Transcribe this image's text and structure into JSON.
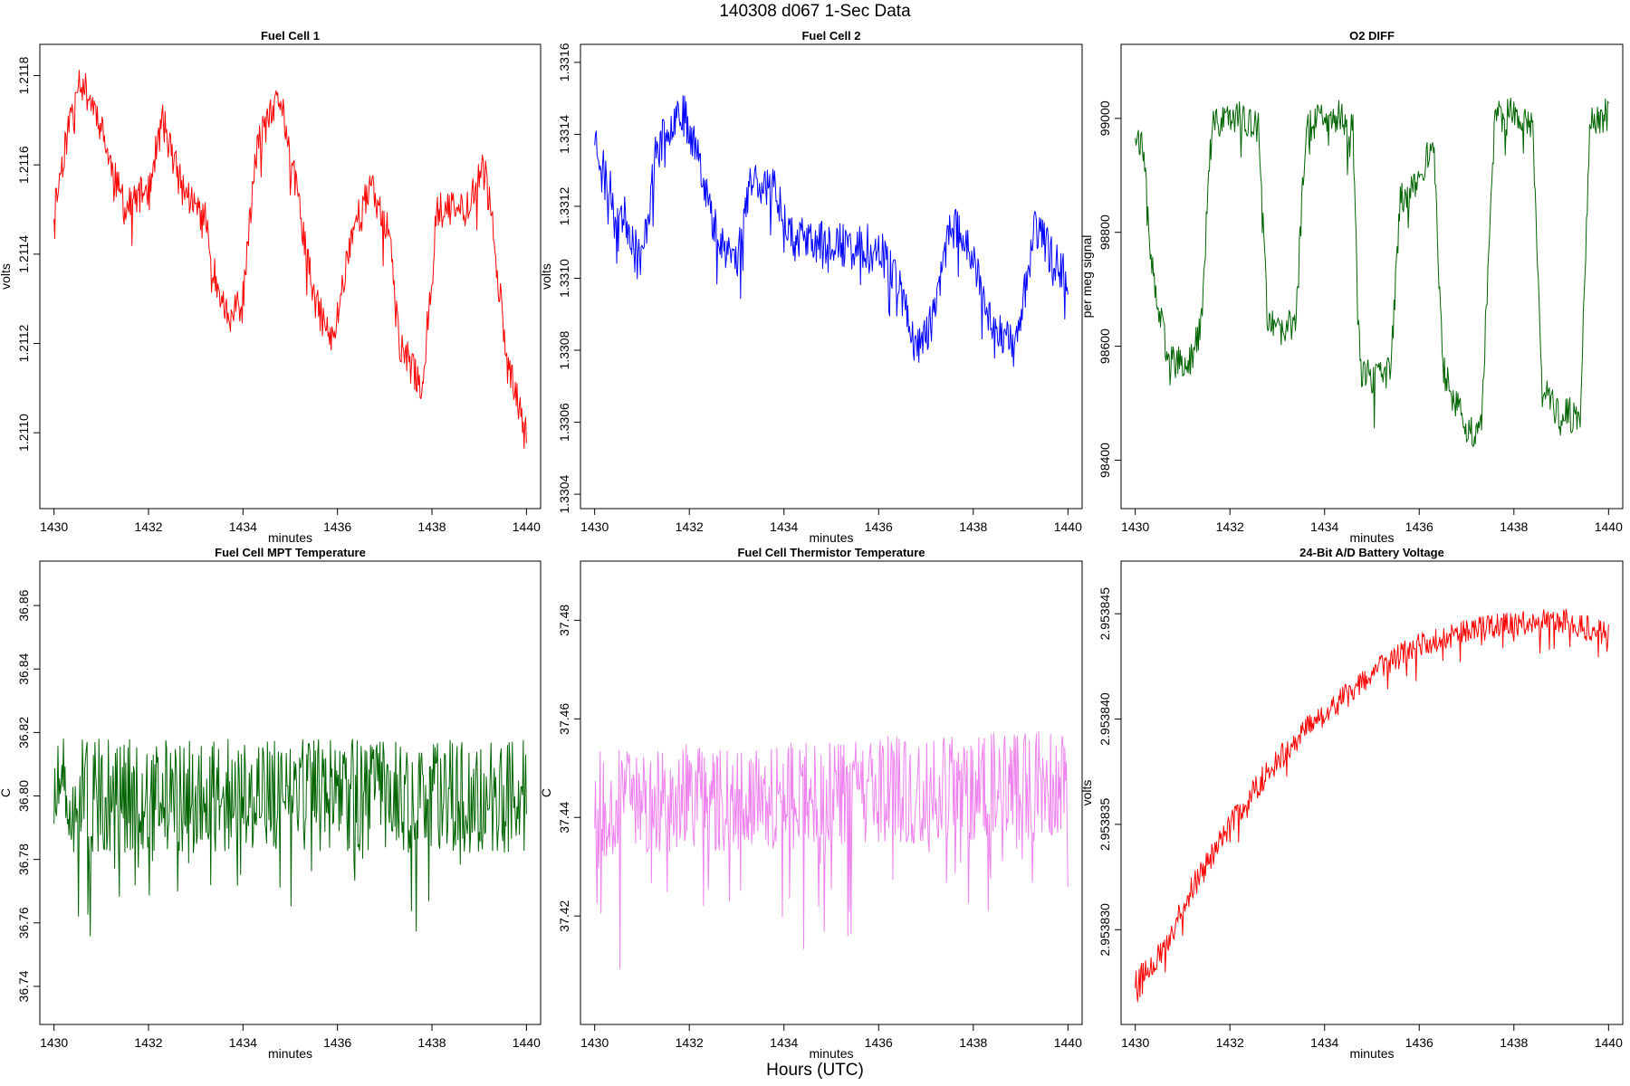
{
  "page": {
    "title": "140308   d067   1-Sec Data",
    "bottom_label": "Hours (UTC)"
  },
  "chart_data": [
    {
      "type": "line",
      "title": "Fuel Cell 1",
      "xlabel": "minutes",
      "ylabel": "volts",
      "color": "#ff0000",
      "xlim": [
        1429.7,
        1440.3
      ],
      "ylim": [
        1.21083,
        1.21187
      ],
      "xticks": [
        1430,
        1432,
        1434,
        1436,
        1438,
        1440
      ],
      "yticks": [
        1.211,
        1.2112,
        1.2114,
        1.2116,
        1.2118
      ],
      "ytick_labels": [
        "1.2110",
        "1.2112",
        "1.2114",
        "1.2116",
        "1.2118"
      ],
      "noise": 4e-05,
      "seed": 11,
      "trend": [
        [
          1430.0,
          1.2115
        ],
        [
          1430.25,
          1.21165
        ],
        [
          1430.5,
          1.2118
        ],
        [
          1430.9,
          1.21172
        ],
        [
          1431.2,
          1.2116
        ],
        [
          1431.5,
          1.2115
        ],
        [
          1432.0,
          1.21155
        ],
        [
          1432.3,
          1.2117
        ],
        [
          1432.7,
          1.21155
        ],
        [
          1433.2,
          1.21148
        ],
        [
          1433.4,
          1.21135
        ],
        [
          1433.7,
          1.21125
        ],
        [
          1434.0,
          1.2113
        ],
        [
          1434.3,
          1.21165
        ],
        [
          1434.8,
          1.21175
        ],
        [
          1435.2,
          1.2115
        ],
        [
          1435.5,
          1.2113
        ],
        [
          1435.9,
          1.2112
        ],
        [
          1436.3,
          1.21145
        ],
        [
          1436.7,
          1.21155
        ],
        [
          1437.1,
          1.21145
        ],
        [
          1437.3,
          1.2112
        ],
        [
          1437.8,
          1.2111
        ],
        [
          1438.1,
          1.2115
        ],
        [
          1438.7,
          1.2115
        ],
        [
          1439.1,
          1.2116
        ],
        [
          1439.3,
          1.21145
        ],
        [
          1439.6,
          1.21115
        ],
        [
          1440.0,
          1.211
        ]
      ]
    },
    {
      "type": "line",
      "title": "Fuel Cell 2",
      "xlabel": "minutes",
      "ylabel": "volts",
      "color": "#0000ff",
      "xlim": [
        1429.7,
        1440.3
      ],
      "ylim": [
        1.33036,
        1.33165
      ],
      "xticks": [
        1430,
        1432,
        1434,
        1436,
        1438,
        1440
      ],
      "yticks": [
        1.3304,
        1.3306,
        1.3308,
        1.331,
        1.3312,
        1.3314,
        1.3316
      ],
      "ytick_labels": [
        "1.3304",
        "1.3306",
        "1.3308",
        "1.3310",
        "1.3312",
        "1.3314",
        "1.3316"
      ],
      "noise": 6e-05,
      "seed": 23,
      "trend": [
        [
          1430.0,
          1.3314
        ],
        [
          1430.3,
          1.33125
        ],
        [
          1430.7,
          1.33115
        ],
        [
          1431.0,
          1.33105
        ],
        [
          1431.3,
          1.33135
        ],
        [
          1431.8,
          1.33148
        ],
        [
          1432.2,
          1.33135
        ],
        [
          1432.5,
          1.33115
        ],
        [
          1433.0,
          1.33105
        ],
        [
          1433.3,
          1.33128
        ],
        [
          1433.8,
          1.33125
        ],
        [
          1434.2,
          1.33112
        ],
        [
          1434.6,
          1.3311
        ],
        [
          1435.0,
          1.3311
        ],
        [
          1435.5,
          1.33108
        ],
        [
          1436.0,
          1.3311
        ],
        [
          1436.4,
          1.331
        ],
        [
          1436.8,
          1.3308
        ],
        [
          1437.2,
          1.3309
        ],
        [
          1437.5,
          1.33115
        ],
        [
          1437.9,
          1.3311
        ],
        [
          1438.3,
          1.3309
        ],
        [
          1438.9,
          1.3308
        ],
        [
          1439.3,
          1.33115
        ],
        [
          1439.7,
          1.33105
        ],
        [
          1440.0,
          1.331
        ]
      ]
    },
    {
      "type": "line",
      "title": "O2 DIFF",
      "xlabel": "minutes",
      "ylabel": "per meg signal",
      "color": "#006400",
      "xlim": [
        1429.7,
        1440.3
      ],
      "ylim": [
        98315,
        99130
      ],
      "xticks": [
        1430,
        1432,
        1434,
        1436,
        1438,
        1440
      ],
      "yticks": [
        98400,
        98600,
        98800,
        99000
      ],
      "ytick_labels": [
        "98400",
        "98600",
        "98800",
        "99000"
      ],
      "noise": 30,
      "seed": 37,
      "trend": [
        [
          1430.0,
          98980
        ],
        [
          1430.15,
          98950
        ],
        [
          1430.4,
          98700
        ],
        [
          1430.7,
          98580
        ],
        [
          1431.1,
          98560
        ],
        [
          1431.4,
          98640
        ],
        [
          1431.6,
          98980
        ],
        [
          1432.0,
          99010
        ],
        [
          1432.4,
          98990
        ],
        [
          1432.6,
          98980
        ],
        [
          1432.8,
          98640
        ],
        [
          1433.1,
          98620
        ],
        [
          1433.4,
          98650
        ],
        [
          1433.6,
          98980
        ],
        [
          1434.0,
          99010
        ],
        [
          1434.4,
          99000
        ],
        [
          1434.6,
          98980
        ],
        [
          1434.75,
          98560
        ],
        [
          1435.0,
          98540
        ],
        [
          1435.4,
          98560
        ],
        [
          1435.6,
          98860
        ],
        [
          1435.9,
          98880
        ],
        [
          1436.3,
          98960
        ],
        [
          1436.5,
          98560
        ],
        [
          1437.0,
          98450
        ],
        [
          1437.3,
          98450
        ],
        [
          1437.6,
          99000
        ],
        [
          1438.0,
          99010
        ],
        [
          1438.4,
          98990
        ],
        [
          1438.6,
          98520
        ],
        [
          1439.0,
          98480
        ],
        [
          1439.4,
          98480
        ],
        [
          1439.6,
          98990
        ],
        [
          1440.0,
          99010
        ]
      ]
    },
    {
      "type": "line",
      "title": "Fuel Cell MPT Temperature",
      "xlabel": "minutes",
      "ylabel": "C",
      "color": "#006400",
      "xlim": [
        1429.7,
        1440.3
      ],
      "ylim": [
        36.728,
        36.874
      ],
      "xticks": [
        1430,
        1432,
        1434,
        1436,
        1438,
        1440
      ],
      "yticks": [
        36.74,
        36.76,
        36.78,
        36.8,
        36.82,
        36.84,
        36.86
      ],
      "ytick_labels": [
        "36.74",
        "36.76",
        "36.78",
        "36.80",
        "36.82",
        "36.84",
        "36.86"
      ],
      "noise": 0.018,
      "seed": 51,
      "trend": [
        [
          1430.0,
          36.8
        ],
        [
          1440.0,
          36.8
        ]
      ]
    },
    {
      "type": "line",
      "title": "Fuel Cell Thermistor Temperature",
      "xlabel": "minutes",
      "ylabel": "C",
      "color": "#ee82ee",
      "xlim": [
        1429.7,
        1440.3
      ],
      "ylim": [
        37.398,
        37.492
      ],
      "xticks": [
        1430,
        1432,
        1434,
        1436,
        1438,
        1440
      ],
      "yticks": [
        37.42,
        37.44,
        37.46,
        37.48
      ],
      "ytick_labels": [
        "37.42",
        "37.44",
        "37.46",
        "37.48"
      ],
      "noise": 0.011,
      "seed": 67,
      "trend": [
        [
          1430.0,
          37.443
        ],
        [
          1440.0,
          37.447
        ]
      ]
    },
    {
      "type": "line",
      "title": "24-Bit A/D Battery Voltage",
      "xlabel": "minutes",
      "ylabel": "volts",
      "color": "#ff0000",
      "xlim": [
        1429.7,
        1440.3
      ],
      "ylim": [
        2.9538255,
        2.9538475
      ],
      "xticks": [
        1430,
        1432,
        1434,
        1436,
        1438,
        1440
      ],
      "yticks": [
        2.95383,
        2.953835,
        2.95384,
        2.953845
      ],
      "ytick_labels": [
        "2.953830",
        "2.953835",
        "2.953840",
        "2.953845"
      ],
      "noise": 6e-07,
      "seed": 79,
      "trend": [
        [
          1430.0,
          2.9538275
        ],
        [
          1430.6,
          2.953829
        ],
        [
          1431.2,
          2.953832
        ],
        [
          1432.0,
          2.953835
        ],
        [
          1432.8,
          2.9538375
        ],
        [
          1433.6,
          2.9538395
        ],
        [
          1434.4,
          2.953841
        ],
        [
          1435.2,
          2.9538425
        ],
        [
          1436.0,
          2.9538435
        ],
        [
          1437.0,
          2.9538442
        ],
        [
          1438.0,
          2.9538445
        ],
        [
          1439.0,
          2.9538447
        ],
        [
          1440.0,
          2.953844
        ]
      ]
    }
  ]
}
